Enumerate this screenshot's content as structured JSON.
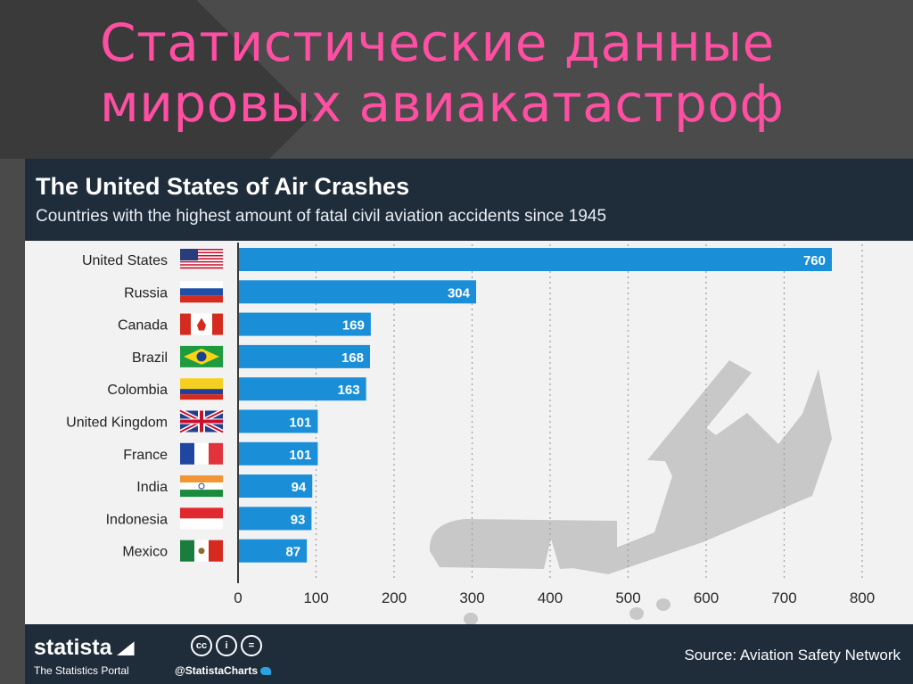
{
  "slide": {
    "title_line1": "Статистические данные",
    "title_line2": "мировых авиакатастроф"
  },
  "colors": {
    "bar": "#1a8fd8",
    "header_bg": "#1f2c3a",
    "title_pink": "#ff4fa3",
    "plane": "#c8c8c8"
  },
  "flags": [
    "flag-us-icon",
    "flag-russia-icon",
    "flag-canada-icon",
    "flag-brazil-icon",
    "flag-colombia-icon",
    "flag-uk-icon",
    "flag-france-icon",
    "flag-india-icon",
    "flag-indonesia-icon",
    "flag-mexico-icon"
  ],
  "chart_data": {
    "type": "bar",
    "orientation": "horizontal",
    "title": "The United States of Air Crashes",
    "subtitle": "Countries with the highest amount of fatal civil aviation accidents since 1945",
    "categories": [
      "United States",
      "Russia",
      "Canada",
      "Brazil",
      "Colombia",
      "United Kingdom",
      "France",
      "India",
      "Indonesia",
      "Mexico"
    ],
    "values": [
      760,
      304,
      169,
      168,
      163,
      101,
      101,
      94,
      93,
      87
    ],
    "xlim": [
      0,
      800
    ],
    "ticks": [
      0,
      100,
      200,
      300,
      400,
      500,
      600,
      700,
      800
    ],
    "tick_labels": [
      "0",
      "100",
      "200",
      "300",
      "400",
      "500",
      "600",
      "700",
      "800"
    ],
    "grid": true
  },
  "footer": {
    "brand": "statista",
    "portal": "The Statistics Portal",
    "handle": "@StatistaCharts",
    "cc_icons": [
      "cc",
      "i",
      "="
    ],
    "source": "Source: Aviation Safety Network"
  }
}
